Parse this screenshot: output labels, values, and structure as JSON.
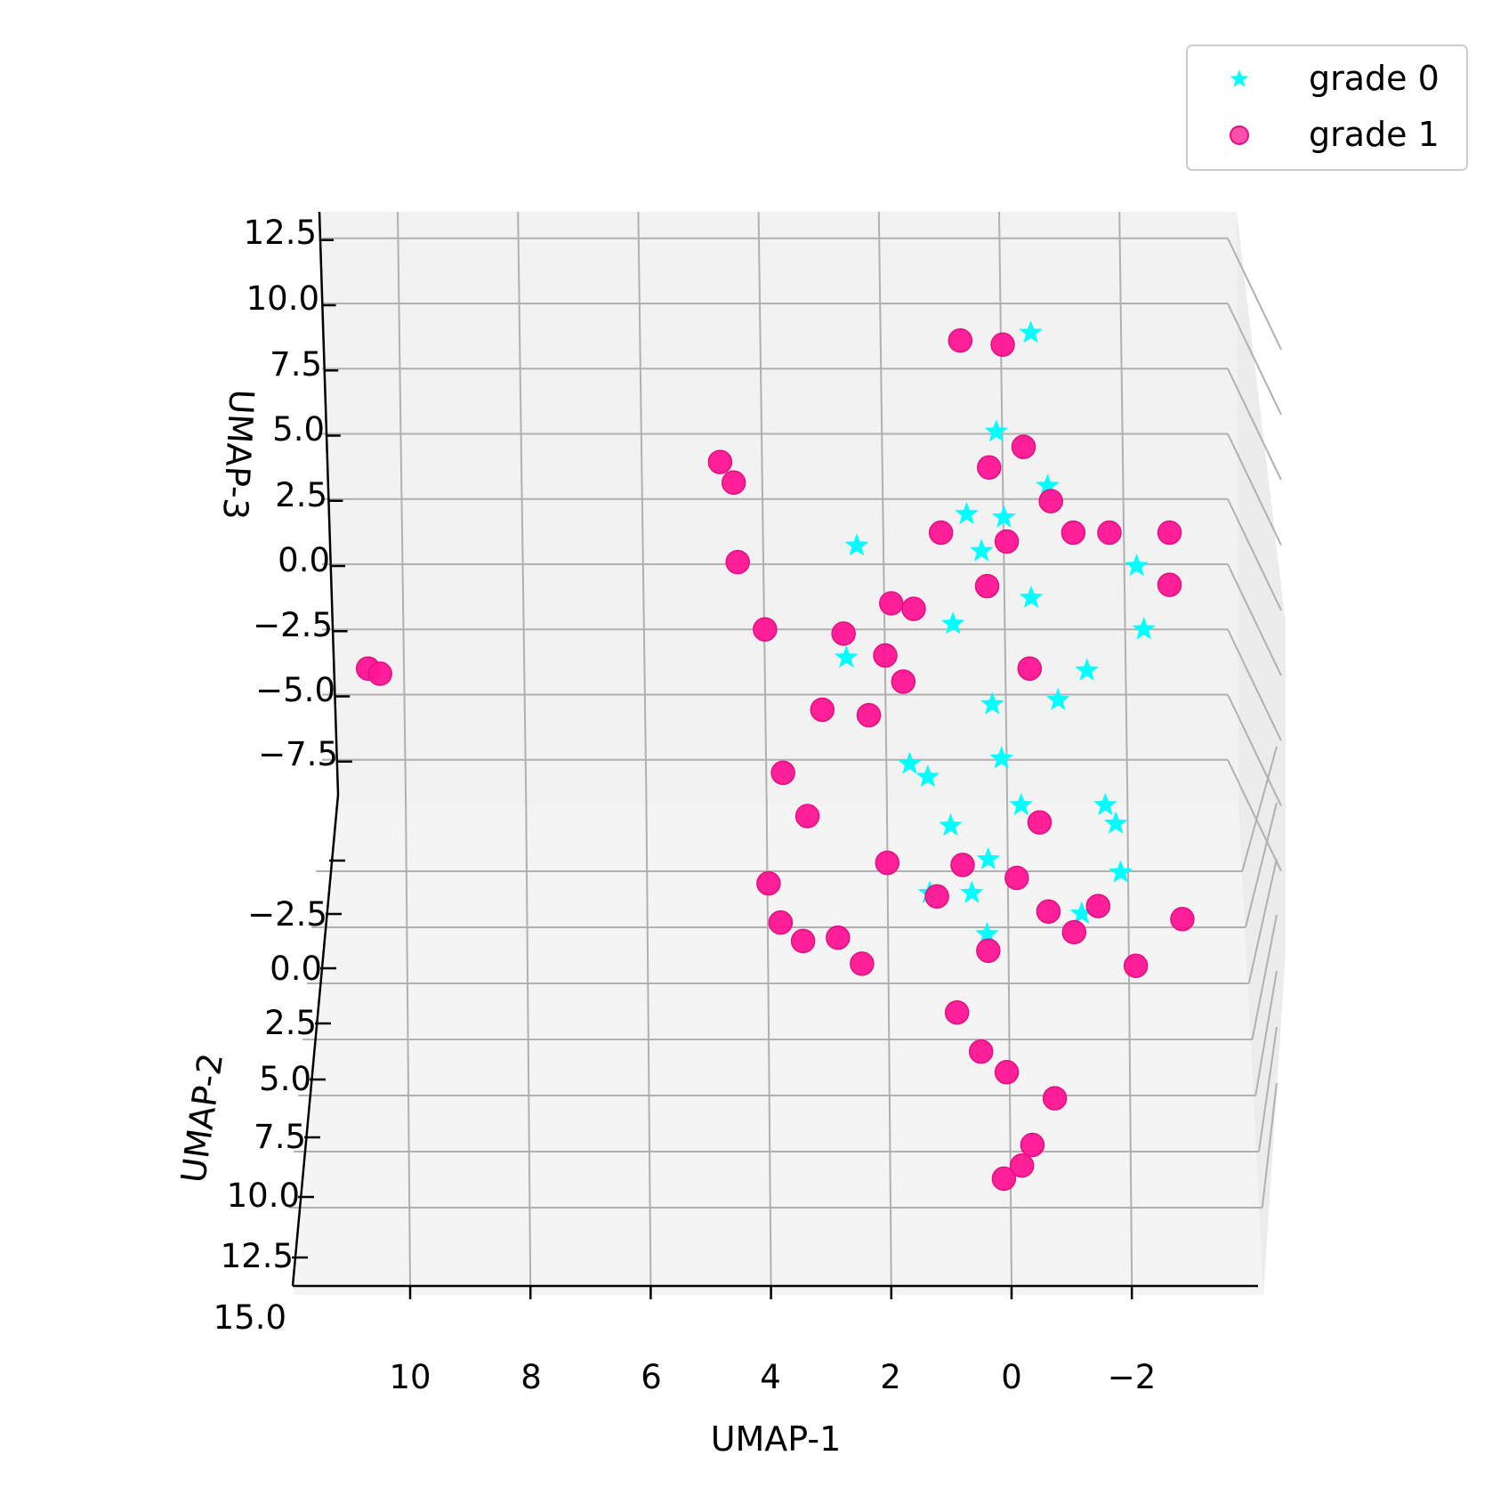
{
  "chart_data": {
    "type": "scatter",
    "projection": "3d",
    "title": "",
    "xlabel": "UMAP-1",
    "ylabel": "UMAP-2",
    "zlabel": "UMAP-3",
    "xlim": [
      -4,
      12
    ],
    "ylim": [
      -5,
      15
    ],
    "zlim": [
      -10,
      13
    ],
    "x_ticks": [
      "10",
      "8",
      "6",
      "4",
      "2",
      "0",
      "−2"
    ],
    "y_ticks": [
      "",
      "−2.5",
      "0.0",
      "2.5",
      "5.0",
      "7.5",
      "10.0",
      "12.5",
      "15.0"
    ],
    "z_ticks": [
      "12.5",
      "10.0",
      "7.5",
      "5.0",
      "2.5",
      "0.0",
      "−2.5",
      "−5.0",
      "−7.5"
    ],
    "grid": true,
    "legend_position": "top-right",
    "series": [
      {
        "name": "grade 0",
        "marker": "star",
        "color": "#00ffff",
        "x": [
          0.1,
          0.5,
          -0.3,
          0.8,
          0.2,
          -0.6,
          1.0,
          0.4,
          -1.2,
          -0.8,
          1.5,
          0.0,
          -1.6,
          -2.2,
          2.6,
          0.6,
          -1.4,
          1.8,
          -0.4,
          0.9,
          -2.0,
          1.2,
          0.3,
          -0.9,
          2.8,
          1.6,
          -1.6,
          0.7
        ],
        "y": [
          -1,
          0,
          1,
          2,
          -2,
          0,
          1,
          3,
          2,
          -1,
          4,
          6,
          5,
          0,
          1,
          8,
          6,
          4,
          -3,
          9,
          3,
          7,
          5,
          10,
          2,
          9,
          8,
          11
        ],
        "z": [
          1.5,
          0.5,
          -1.0,
          2.5,
          4.5,
          3.0,
          -2.0,
          -4.5,
          -3.5,
          -5.5,
          -7.0,
          -7.5,
          -8.5,
          -2.5,
          1.0,
          -9.0,
          -7.5,
          -6.5,
          8.0,
          -10.0,
          0.8,
          -8.0,
          -6.0,
          -10.5,
          -3.0,
          -10.0,
          -9.5,
          -11.0
        ]
      },
      {
        "name": "grade 1",
        "marker": "circle",
        "color": "#ff1493",
        "x": [
          2.1,
          1.8,
          2.4,
          1.6,
          2.0,
          1.2,
          0.4,
          0.2,
          0.8,
          -0.2,
          -0.6,
          -1.0,
          -1.6,
          -2.6,
          -2.6,
          0.0,
          0.3,
          -0.3,
          4.5,
          4.1,
          3.8,
          3.2,
          3.5,
          2.9,
          10.7,
          10.5,
          4.9,
          4.7,
          4.2,
          4.0,
          3.6,
          3.1,
          2.7,
          2.2,
          1.4,
          1.0,
          0.6,
          0.1,
          -0.4,
          -0.8,
          -1.2,
          -1.8,
          -2.6,
          -0.2,
          0.4,
          0.8,
          1.2,
          -0.4,
          0.0,
          0.5,
          0.2
        ],
        "y": [
          0,
          0,
          1,
          -1,
          0,
          1,
          1,
          2,
          -2,
          0,
          2,
          1,
          1,
          1,
          1,
          -3,
          -4,
          0,
          -2,
          0,
          0,
          2,
          4,
          4,
          0,
          0,
          2,
          3,
          6,
          6,
          5,
          8,
          8,
          5,
          6,
          7,
          8,
          7,
          8,
          9,
          9,
          10,
          9,
          10,
          12,
          11,
          11,
          12,
          13,
          14,
          14
        ],
        "z": [
          -3.5,
          -4.5,
          -5.5,
          -2.0,
          -1.5,
          1.5,
          4.0,
          9.0,
          8.0,
          4.5,
          3.0,
          1.5,
          1.5,
          1.5,
          -0.5,
          0.0,
          -2.0,
          -4.0,
          -0.5,
          -2.5,
          -8.0,
          -5.0,
          -8.5,
          -1.5,
          -4.0,
          -4.2,
          4.5,
          4.0,
          -10.5,
          -12.0,
          -13.0,
          -12.0,
          -13.0,
          -10.0,
          -11.0,
          -9.5,
          -12.5,
          -10.0,
          -11.0,
          -11.5,
          -10.5,
          -12.5,
          -11.0,
          -7.0,
          -16.0,
          -15.5,
          -14.0,
          -17.0,
          -18.5,
          -19.5,
          -19.0
        ]
      }
    ]
  }
}
